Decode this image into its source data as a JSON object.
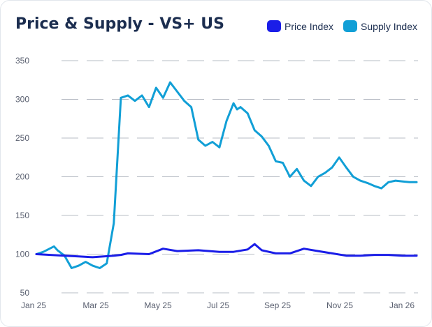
{
  "title": "Price & Supply - VS+ US",
  "legend": [
    {
      "name": "Price Index",
      "color": "#1a1de8"
    },
    {
      "name": "Supply Index",
      "color": "#119fd6"
    }
  ],
  "chart_data": {
    "type": "line",
    "title": "Price & Supply - VS+ US",
    "legend_position": "top-right",
    "grid": true,
    "ylim": [
      50,
      350
    ],
    "y_ticks": [
      350,
      300,
      250,
      200,
      150,
      100,
      50
    ],
    "x_tick_labels": [
      "Jan 25",
      "Mar 25",
      "May 25",
      "Jul 25",
      "Sep 25",
      "Nov 25",
      "Jan 26"
    ],
    "x_range": [
      0,
      54
    ],
    "x_unit": "weeks from Jan 25",
    "series": [
      {
        "name": "Price Index",
        "color": "#1a1de8",
        "x": [
          0,
          4,
          6,
          8,
          11,
          12,
          13,
          16,
          18,
          20,
          23,
          26,
          28,
          30,
          31,
          32,
          34,
          36,
          38,
          40,
          42,
          44,
          46,
          48,
          50,
          52,
          54
        ],
        "y": [
          100,
          98,
          97,
          96,
          98,
          99,
          101,
          100,
          107,
          104,
          105,
          103,
          103,
          106,
          113,
          105,
          101,
          101,
          107,
          104,
          101,
          98,
          98,
          99,
          99,
          98,
          98
        ]
      },
      {
        "name": "Supply Index",
        "color": "#119fd6",
        "x": [
          0,
          1,
          2.5,
          3,
          4,
          5,
          6,
          7,
          8,
          9,
          10,
          11,
          12,
          13,
          14,
          15,
          16,
          17,
          18,
          19,
          20,
          21,
          22,
          23,
          24,
          25,
          26,
          27,
          28,
          28.5,
          29,
          30,
          31,
          32,
          33,
          34,
          35,
          36,
          37,
          38,
          39,
          40,
          41,
          42,
          43,
          44,
          45,
          46,
          47,
          48,
          49,
          50,
          51,
          52,
          53,
          54
        ],
        "y": [
          100,
          103,
          110,
          105,
          98,
          82,
          85,
          90,
          85,
          82,
          88,
          140,
          302,
          305,
          298,
          305,
          290,
          315,
          302,
          322,
          310,
          298,
          290,
          248,
          240,
          245,
          238,
          272,
          295,
          287,
          290,
          282,
          260,
          252,
          240,
          220,
          218,
          200,
          210,
          195,
          188,
          200,
          205,
          212,
          225,
          212,
          200,
          195,
          192,
          188,
          185,
          193,
          195,
          194,
          193,
          193
        ]
      }
    ]
  }
}
